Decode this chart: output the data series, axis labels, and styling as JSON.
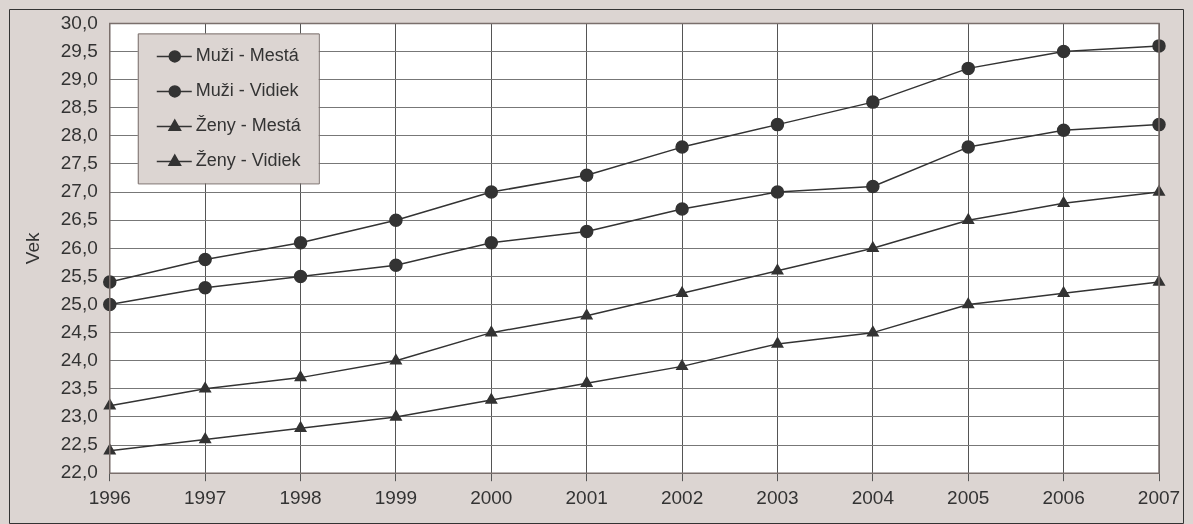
{
  "chart_data": {
    "type": "line",
    "ylabel": "Vek",
    "categories": [
      "1996",
      "1997",
      "1998",
      "1999",
      "2000",
      "2001",
      "2002",
      "2003",
      "2004",
      "2005",
      "2006",
      "2007"
    ],
    "ylim": [
      22,
      30
    ],
    "yticks": [
      {
        "value": 22,
        "label": "22,0"
      },
      {
        "value": 22.5,
        "label": "22,5"
      },
      {
        "value": 23,
        "label": "23,0"
      },
      {
        "value": 23.5,
        "label": "23,5"
      },
      {
        "value": 24,
        "label": "24,0"
      },
      {
        "value": 24.5,
        "label": "24,5"
      },
      {
        "value": 25,
        "label": "25,0"
      },
      {
        "value": 25.5,
        "label": "25,5"
      },
      {
        "value": 26,
        "label": "26,0"
      },
      {
        "value": 26.5,
        "label": "26,5"
      },
      {
        "value": 27,
        "label": "27,0"
      },
      {
        "value": 27.5,
        "label": "27,5"
      },
      {
        "value": 28,
        "label": "28,0"
      },
      {
        "value": 28.5,
        "label": "28,5"
      },
      {
        "value": 29,
        "label": "29,0"
      },
      {
        "value": 29.5,
        "label": "29,5"
      },
      {
        "value": 30,
        "label": "30,0"
      }
    ],
    "grid": true,
    "legend": "top left",
    "line_style": "solid",
    "series": [
      {
        "name": "Muži - Mestá",
        "color": "#333333",
        "marker": "circle",
        "values": [
          25.4,
          25.8,
          26.1,
          26.5,
          27.0,
          27.3,
          27.8,
          28.2,
          28.6,
          29.2,
          29.5,
          29.6
        ]
      },
      {
        "name": "Muži - Vidiek",
        "color": "#333333",
        "marker": "circle",
        "values": [
          25.0,
          25.3,
          25.5,
          25.7,
          26.1,
          26.3,
          26.7,
          27.0,
          27.1,
          27.8,
          28.1,
          28.2
        ]
      },
      {
        "name": "Ženy - Mestá",
        "color": "#333333",
        "marker": "triangle",
        "values": [
          23.2,
          23.5,
          23.7,
          24.0,
          24.5,
          24.8,
          25.2,
          25.6,
          26.0,
          26.5,
          26.8,
          27.0
        ]
      },
      {
        "name": "Ženy - Vidiek",
        "color": "#333333",
        "marker": "triangle",
        "values": [
          22.4,
          22.6,
          22.8,
          23.0,
          23.3,
          23.6,
          23.9,
          24.3,
          24.5,
          25.0,
          25.2,
          25.4
        ]
      }
    ]
  }
}
